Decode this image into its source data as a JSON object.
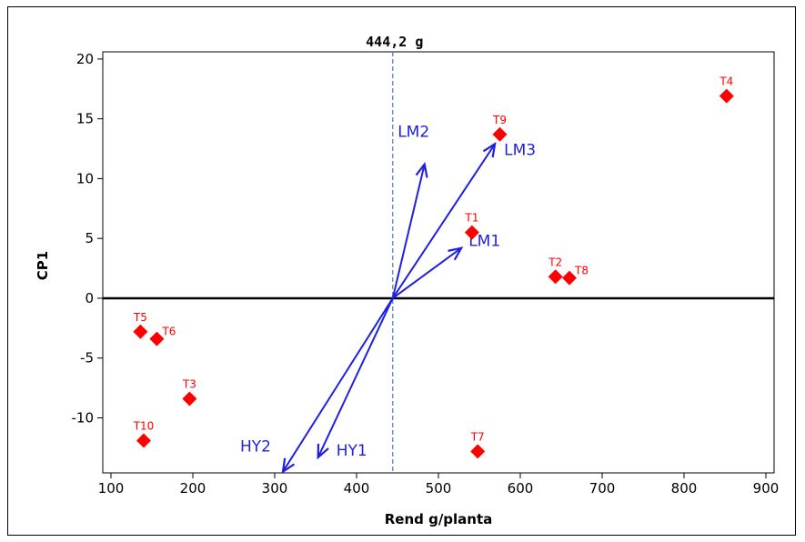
{
  "chart_data": {
    "type": "scatter",
    "xlabel": "Rend g/planta",
    "ylabel": "CP1",
    "xlim": [
      90,
      910
    ],
    "ylim": [
      -14.6,
      20.6
    ],
    "xticks": [
      100,
      200,
      300,
      400,
      500,
      600,
      700,
      800,
      900
    ],
    "yticks": [
      -10,
      -5,
      0,
      5,
      10,
      15,
      20
    ],
    "grid": false,
    "colors": {
      "points": "#ff0000",
      "vectors": "#1f1fe0",
      "reference": "#4a7fb0",
      "axis": "#000000"
    },
    "reference_line": {
      "x": 444.2,
      "label": "444,2 g"
    },
    "horizontal_line_y": 0,
    "points": [
      {
        "label": "T1",
        "x": 541,
        "y": 5.5
      },
      {
        "label": "T2",
        "x": 643,
        "y": 1.8
      },
      {
        "label": "T3",
        "x": 196,
        "y": -8.4
      },
      {
        "label": "T4",
        "x": 852,
        "y": 16.9
      },
      {
        "label": "T5",
        "x": 136,
        "y": -2.8
      },
      {
        "label": "T6",
        "x": 156,
        "y": -3.4
      },
      {
        "label": "T7",
        "x": 548,
        "y": -12.8
      },
      {
        "label": "T8",
        "x": 660,
        "y": 1.7
      },
      {
        "label": "T9",
        "x": 575,
        "y": 13.7
      },
      {
        "label": "T10",
        "x": 140,
        "y": -11.9
      }
    ],
    "vectors": [
      {
        "label": "LM1",
        "origin": [
          444.2,
          0
        ],
        "end": [
          528,
          4.2
        ]
      },
      {
        "label": "LM2",
        "origin": [
          444.2,
          0
        ],
        "end": [
          483,
          11.2
        ]
      },
      {
        "label": "LM3",
        "origin": [
          444.2,
          0
        ],
        "end": [
          569,
          12.9
        ]
      },
      {
        "label": "HY1",
        "origin": [
          444.2,
          0
        ],
        "end": [
          353,
          -13.3
        ]
      },
      {
        "label": "HY2",
        "origin": [
          444.2,
          0
        ],
        "end": [
          310,
          -14.5
        ]
      }
    ]
  }
}
